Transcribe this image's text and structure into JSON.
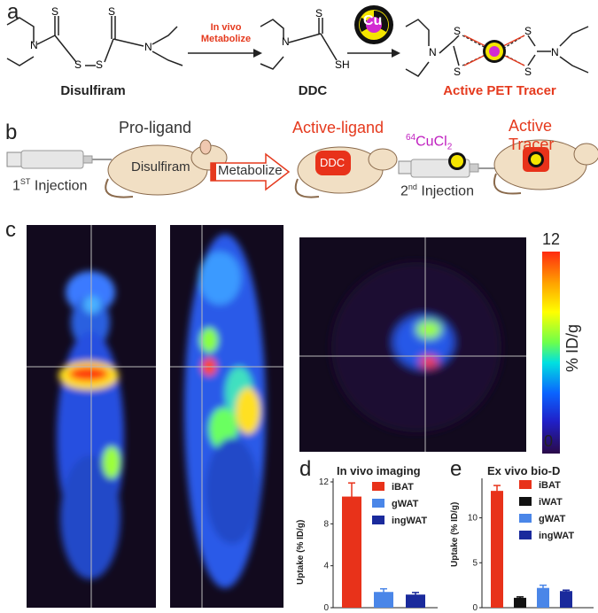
{
  "panel_a": {
    "letter": "a",
    "disulfiram_label": "Disulfiram",
    "ddc_label": "DDC",
    "arrow_label_line1": "In vivo",
    "arrow_label_line2": "Metabolize",
    "tracer_label": "Active PET Tracer",
    "atoms": {
      "N": "N",
      "S": "S",
      "SH": "SH",
      "Cu": "Cu"
    }
  },
  "panel_b": {
    "letter": "b",
    "pro_ligand": "Pro-ligand",
    "disulfiram": "Disulfiram",
    "metabolize": "Metabolize",
    "active_ligand": "Active-ligand",
    "ddc": "DDC",
    "cucl2_sup": "64",
    "cucl2_main": "CuCl",
    "cucl2_sub": "2",
    "active_tracer": "Active Tracer",
    "first_injection_num": "1",
    "first_injection_sup": "ST",
    "first_injection_word": " Injection",
    "second_injection_num": "2",
    "second_injection_sup": "nd",
    "second_injection_word": " Injection"
  },
  "panel_c": {
    "letter": "c",
    "colorbar_max": "12",
    "colorbar_min": "0",
    "colorbar_label": "% ID/g"
  },
  "chart_data": [
    {
      "type": "bar",
      "panel": "d",
      "title": "In vivo imaging",
      "ylabel": "Uptake (% ID/g)",
      "ylim": [
        0,
        12
      ],
      "yticks": [
        "0",
        "4",
        "8",
        "12"
      ],
      "categories": [
        "iBAT",
        "gWAT",
        "ingWAT"
      ],
      "values": [
        10.6,
        1.5,
        1.25
      ],
      "errors": [
        1.3,
        0.3,
        0.2
      ],
      "colors": [
        "#e8321a",
        "#4a86e8",
        "#1a2a9c"
      ]
    },
    {
      "type": "bar",
      "panel": "e",
      "title": "Ex vivo bio-D",
      "ylabel": "Uptake (% ID/g)",
      "ylim": [
        0,
        14
      ],
      "yticks": [
        "0",
        "5",
        "10"
      ],
      "categories": [
        "iBAT",
        "iWAT",
        "gWAT",
        "ingWAT"
      ],
      "values": [
        13.0,
        1.1,
        2.2,
        1.85
      ],
      "errors": [
        0.6,
        0.1,
        0.3,
        0.1
      ],
      "colors": [
        "#e8321a",
        "#111111",
        "#4a86e8",
        "#1a2a9c"
      ]
    }
  ]
}
